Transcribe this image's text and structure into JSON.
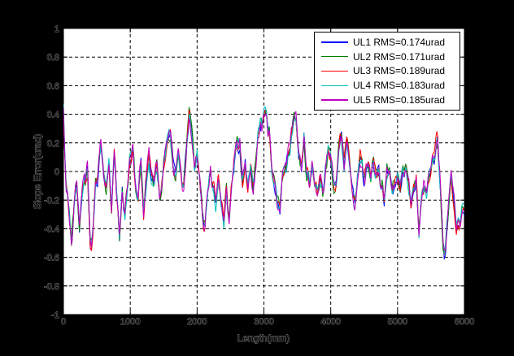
{
  "figure": {
    "background": "#000000",
    "plot_background": "#ffffff",
    "grid_color": "#000000",
    "label_text_color": "#000000"
  },
  "chart_data": {
    "type": "line",
    "title": "",
    "xlabel": "Length(mm)",
    "ylabel": "Slope Error(urad)",
    "xlim": [
      0,
      6000
    ],
    "ylim": [
      -1,
      1
    ],
    "xticks": [
      0,
      1000,
      2000,
      3000,
      4000,
      5000,
      6000
    ],
    "yticks": [
      -1,
      -0.8,
      -0.6,
      -0.4,
      -0.2,
      0,
      0.2,
      0.4,
      0.6,
      0.8,
      1
    ],
    "grid": "on",
    "grid_style": "dashed",
    "legend_position": "top-right",
    "series": [
      {
        "name": "UL1",
        "rms_urad": 0.174,
        "color": "#0000ff",
        "legend_label": "UL1 RMS=0.174urad"
      },
      {
        "name": "UL2",
        "rms_urad": 0.171,
        "color": "#008000",
        "legend_label": "UL2 RMS=0.171urad"
      },
      {
        "name": "UL3",
        "rms_urad": 0.189,
        "color": "#ff0000",
        "legend_label": "UL3 RMS=0.189urad"
      },
      {
        "name": "UL4",
        "rms_urad": 0.183,
        "color": "#00bfbf",
        "legend_label": "UL4 RMS=0.183urad"
      },
      {
        "name": "UL5",
        "rms_urad": 0.185,
        "color": "#bf00bf",
        "legend_label": "UL5 RMS=0.185urad"
      }
    ],
    "base_curve": {
      "comment": "common slope trace read off the plot, urad, sampled every 40 mm",
      "x0_mm": 0,
      "dx_mm": 40,
      "y_urad": [
        0.4,
        -0.1,
        -0.28,
        -0.43,
        -0.2,
        -0.08,
        -0.38,
        -0.15,
        -0.04,
        -0.03,
        -0.5,
        -0.42,
        -0.12,
        0.02,
        0.19,
        -0.08,
        -0.16,
        -0.01,
        -0.29,
        0.07,
        -0.22,
        -0.46,
        -0.13,
        -0.33,
        -0.1,
        0.06,
        0.18,
        -0.06,
        -0.18,
        0.03,
        -0.28,
        -0.05,
        0.14,
        -0.09,
        -0.12,
        0.01,
        -0.16,
        -0.05,
        0.09,
        0.21,
        0.28,
        0.04,
        -0.04,
        0.11,
        0.01,
        -0.12,
        0.12,
        0.38,
        0.28,
        0.04,
        0.17,
        -0.02,
        -0.26,
        -0.35,
        -0.14,
        0.01,
        -0.11,
        -0.22,
        -0.09,
        -0.26,
        -0.33,
        -0.14,
        -0.33,
        -0.08,
        0.11,
        0.22,
        0.16,
        -0.07,
        0.09,
        -0.17,
        0.01,
        -0.16,
        0.06,
        0.26,
        0.39,
        0.36,
        0.4,
        0.26,
        -0.02,
        -0.11,
        -0.24,
        -0.26,
        -0.02,
        0.06,
        0.09,
        0.22,
        0.33,
        0.36,
        0.09,
        0.04,
        0.25,
        -0.04,
        -0.09,
        0.02,
        -0.12,
        -0.14,
        -0.04,
        -0.16,
        0.02,
        0.19,
        0.05,
        -0.07,
        -0.05,
        0.16,
        0.25,
        0.1,
        0.19,
        0.04,
        -0.1,
        -0.18,
        -0.05,
        0.09,
        -0.02,
        -0.02,
        0.06,
        -0.1,
        0.02,
        -0.07,
        0.04,
        -0.08,
        -0.2,
        -0.03,
        0.0,
        -0.14,
        -0.07,
        0.0,
        -0.12,
        -0.02,
        0.0,
        -0.1,
        -0.28,
        -0.12,
        -0.02,
        -0.4,
        -0.18,
        -0.05,
        -0.12,
        -0.04,
        0.05,
        0.1,
        0.2,
        -0.15,
        -0.48,
        -0.52,
        -0.22,
        0.0,
        -0.2,
        -0.42,
        -0.38,
        -0.27,
        -0.25
      ]
    }
  }
}
